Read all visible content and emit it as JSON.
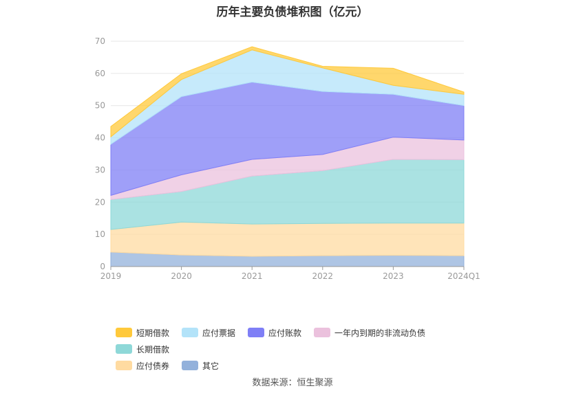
{
  "chart_data": {
    "type": "area",
    "stacked": true,
    "title": "历年主要负债堆积图（亿元）",
    "x": [
      "2019",
      "2020",
      "2021",
      "2022",
      "2023",
      "2024Q1"
    ],
    "ylim": [
      0,
      70
    ],
    "yticks": [
      0,
      10,
      20,
      30,
      40,
      50,
      60,
      70
    ],
    "grid": true,
    "legend_position": "bottom",
    "series": [
      {
        "name": "其它",
        "color": "#93b1db",
        "values": [
          4.5,
          3.6,
          3.2,
          3.4,
          3.5,
          3.4
        ]
      },
      {
        "name": "应付债券",
        "color": "#ffdba1",
        "values": [
          7.0,
          10.2,
          10.0,
          10.0,
          10.0,
          10.1
        ]
      },
      {
        "name": "长期借款",
        "color": "#8ed8d8",
        "values": [
          9.3,
          9.5,
          14.9,
          16.4,
          19.8,
          19.7
        ]
      },
      {
        "name": "一年内到期的非流动负债",
        "color": "#ebc1dd",
        "values": [
          1.3,
          5.2,
          5.2,
          5.0,
          6.9,
          6.1
        ]
      },
      {
        "name": "应付账款",
        "color": "#7f7ff6",
        "values": [
          15.9,
          24.3,
          24.0,
          19.6,
          13.3,
          10.7
        ]
      },
      {
        "name": "应付票据",
        "color": "#b3e3f9",
        "values": [
          2.3,
          5.3,
          10.0,
          7.3,
          2.8,
          3.5
        ]
      },
      {
        "name": "短期借款",
        "color": "#ffc93b",
        "values": [
          3.2,
          1.8,
          1.0,
          0.5,
          5.3,
          0.7
        ]
      }
    ]
  },
  "legend": {
    "rows": [
      [
        {
          "label": "短期借款",
          "color": "#ffc93b"
        },
        {
          "label": "应付票据",
          "color": "#b3e3f9"
        },
        {
          "label": "应付账款",
          "color": "#7f7ff6"
        },
        {
          "label": "一年内到期的非流动负债",
          "color": "#ebc1dd"
        },
        {
          "label": "长期借款",
          "color": "#8ed8d8"
        }
      ],
      [
        {
          "label": "应付债券",
          "color": "#ffdba1"
        },
        {
          "label": "其它",
          "color": "#93b1db"
        }
      ]
    ]
  },
  "source": "数据来源：恒生聚源"
}
